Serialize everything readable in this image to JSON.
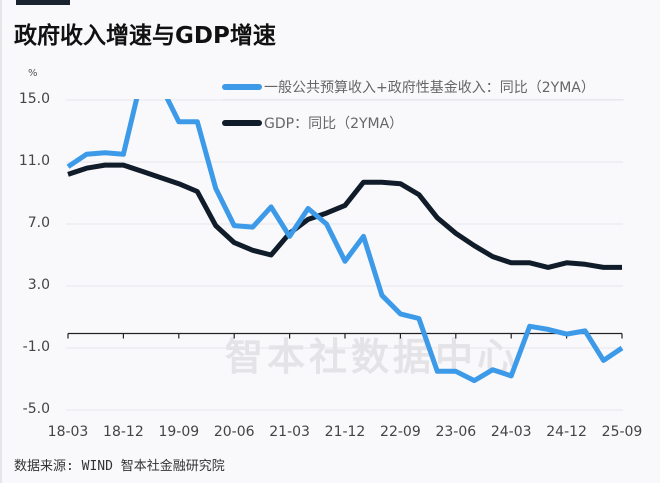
{
  "title": "政府收入增速与GDP增速",
  "unit": "%",
  "source": "数据来源: WIND 智本社金融研究院",
  "watermark": "智本社数据中心",
  "legend": [
    {
      "label": "一般公共预算收入+政府性基金收入：同比（2YMA）",
      "color": "#3d9ae8"
    },
    {
      "label": "GDP：同比（2YMA）",
      "color": "#101c2a"
    }
  ],
  "chart_data": {
    "type": "line",
    "title": "政府收入增速与GDP增速",
    "xlabel": "",
    "ylabel": "%",
    "ylim": [
      -5.0,
      15.0
    ],
    "yticks": [
      "15.0",
      "11.0",
      "7.0",
      "3.0",
      "-1.0",
      "-5.0"
    ],
    "xticks": [
      "18-03",
      "18-12",
      "19-09",
      "20-06",
      "21-03",
      "21-12",
      "22-09",
      "23-06",
      "24-03",
      "24-12",
      "25-09"
    ],
    "grid": true,
    "legend_position": "top-right",
    "x": [
      "18-03",
      "18-06",
      "18-09",
      "18-12",
      "19-03",
      "19-06",
      "19-09",
      "19-12",
      "20-03",
      "20-06",
      "20-09",
      "20-12",
      "21-03",
      "21-06",
      "21-09",
      "21-12",
      "22-03",
      "22-06",
      "22-09",
      "22-12",
      "23-03",
      "23-06",
      "23-09",
      "23-12",
      "24-03",
      "24-06",
      "24-09",
      "24-12",
      "25-03",
      "25-06",
      "25-09"
    ],
    "series": [
      {
        "name": "一般公共预算收入+政府性基金收入：同比（2YMA）",
        "color": "#3d9ae8",
        "values": [
          10.7,
          11.5,
          11.6,
          11.5,
          16.5,
          16.0,
          13.6,
          13.6,
          9.3,
          6.9,
          6.8,
          8.1,
          6.2,
          8.0,
          7.0,
          4.6,
          6.2,
          2.4,
          1.2,
          0.9,
          -2.5,
          -2.5,
          -3.1,
          -2.4,
          -2.8,
          0.4,
          0.2,
          -0.1,
          0.1,
          -1.8,
          -1.0
        ]
      },
      {
        "name": "GDP：同比（2YMA）",
        "color": "#101c2a",
        "values": [
          10.2,
          10.6,
          10.8,
          10.8,
          10.4,
          10.0,
          9.6,
          9.1,
          6.9,
          5.8,
          5.3,
          5.0,
          6.4,
          7.3,
          7.7,
          8.2,
          9.7,
          9.7,
          9.6,
          8.9,
          7.4,
          6.4,
          5.6,
          4.9,
          4.5,
          4.5,
          4.2,
          4.5,
          4.4,
          4.2,
          4.2
        ]
      }
    ]
  }
}
